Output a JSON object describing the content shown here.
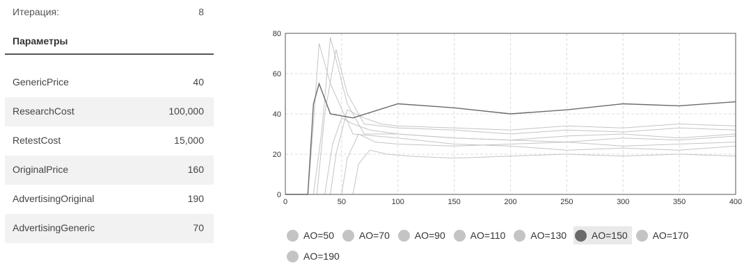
{
  "iteration": {
    "label": "Итерация:",
    "value": "8"
  },
  "params_title": "Параметры",
  "params": [
    {
      "name": "GenericPrice",
      "value": "40"
    },
    {
      "name": "ResearchCost",
      "value": "100,000"
    },
    {
      "name": "RetestCost",
      "value": "15,000"
    },
    {
      "name": "OriginalPrice",
      "value": "160"
    },
    {
      "name": "AdvertisingOriginal",
      "value": "190"
    },
    {
      "name": "AdvertisingGeneric",
      "value": "70"
    }
  ],
  "colors": {
    "series": "#c4c4c4",
    "selected": "#6a6a6a",
    "grid": "#dcdcdc",
    "axis": "#555555"
  },
  "chart_data": {
    "type": "line",
    "xlabel": "",
    "ylabel": "",
    "xlim": [
      0,
      400
    ],
    "ylim": [
      0,
      80
    ],
    "xticks": [
      0,
      50,
      100,
      150,
      200,
      250,
      300,
      350,
      400
    ],
    "yticks": [
      0,
      20,
      40,
      60,
      80
    ],
    "grid": true,
    "legend_position": "bottom",
    "selected_series": "AO=150",
    "series": [
      {
        "name": "AO=50",
        "x": [
          0,
          20,
          25,
          30,
          40,
          60,
          100,
          150,
          200,
          250,
          300,
          350,
          400
        ],
        "y": [
          0,
          0,
          35,
          75,
          55,
          30,
          28,
          25,
          24,
          22,
          23,
          22,
          24
        ]
      },
      {
        "name": "AO=70",
        "x": [
          0,
          25,
          32,
          40,
          55,
          70,
          100,
          150,
          200,
          250,
          300,
          350,
          400
        ],
        "y": [
          0,
          0,
          30,
          78,
          45,
          30,
          30,
          28,
          27,
          26,
          28,
          27,
          29
        ]
      },
      {
        "name": "AO=90",
        "x": [
          0,
          28,
          35,
          45,
          55,
          70,
          100,
          150,
          200,
          250,
          300,
          350,
          400
        ],
        "y": [
          0,
          0,
          40,
          72,
          50,
          35,
          33,
          32,
          30,
          32,
          31,
          33,
          32
        ]
      },
      {
        "name": "AO=110",
        "x": [
          0,
          35,
          42,
          50,
          60,
          75,
          100,
          150,
          200,
          250,
          300,
          350,
          400
        ],
        "y": [
          0,
          0,
          25,
          38,
          35,
          32,
          30,
          28,
          27,
          29,
          30,
          28,
          30
        ]
      },
      {
        "name": "AO=130",
        "x": [
          0,
          40,
          45,
          55,
          70,
          85,
          100,
          150,
          200,
          250,
          300,
          350,
          400
        ],
        "y": [
          0,
          0,
          20,
          42,
          38,
          35,
          34,
          33,
          32,
          34,
          33,
          35,
          34
        ]
      },
      {
        "name": "AO=150",
        "x": [
          0,
          20,
          25,
          30,
          40,
          60,
          100,
          150,
          200,
          250,
          300,
          350,
          400
        ],
        "y": [
          0,
          0,
          45,
          55,
          40,
          38,
          45,
          43,
          40,
          42,
          45,
          44,
          46
        ]
      },
      {
        "name": "AO=170",
        "x": [
          0,
          50,
          55,
          65,
          80,
          100,
          150,
          200,
          250,
          300,
          350,
          400
        ],
        "y": [
          0,
          0,
          18,
          30,
          26,
          25,
          24,
          25,
          26,
          24,
          25,
          26
        ]
      },
      {
        "name": "AO=190",
        "x": [
          0,
          60,
          65,
          75,
          90,
          110,
          150,
          200,
          250,
          300,
          350,
          400
        ],
        "y": [
          0,
          0,
          15,
          22,
          20,
          19,
          18,
          19,
          20,
          19,
          20,
          19
        ]
      }
    ]
  }
}
